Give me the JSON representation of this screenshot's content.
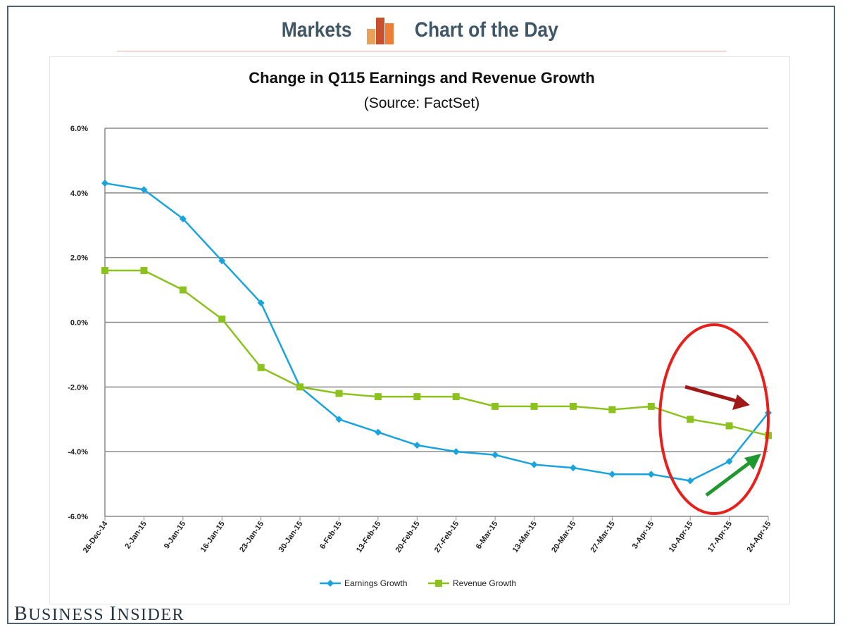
{
  "header": {
    "left_label": "Markets",
    "right_label": "Chart of the Day"
  },
  "colors": {
    "earnings": "#1aa3dc",
    "revenue": "#8cc21e",
    "highlight_circle": "#e8201c",
    "down_arrow": "#a11818",
    "up_arrow": "#20972f",
    "brand": "#3e5666"
  },
  "chart_data": {
    "type": "line",
    "title": "Change in Q115 Earnings and Revenue Growth",
    "subtitle": "(Source: FactSet)",
    "xlabel": "",
    "ylabel": "",
    "ylim": [
      -6.0,
      6.0
    ],
    "yticks": [
      6.0,
      4.0,
      2.0,
      0.0,
      -2.0,
      -4.0,
      -6.0
    ],
    "ytick_labels": [
      "6.0%",
      "4.0%",
      "2.0%",
      "0.0%",
      "-2.0%",
      "-4.0%",
      "-6.0%"
    ],
    "grid": true,
    "legend_position": "bottom-center",
    "categories": [
      "26-Dec-14",
      "2-Jan-15",
      "9-Jan-15",
      "16-Jan-15",
      "23-Jan-15",
      "30-Jan-15",
      "6-Feb-15",
      "13-Feb-15",
      "20-Feb-15",
      "27-Feb-15",
      "6-Mar-15",
      "13-Mar-15",
      "20-Mar-15",
      "27-Mar-15",
      "3-Apr-15",
      "10-Apr-15",
      "17-Apr-15",
      "24-Apr-15"
    ],
    "series": [
      {
        "name": "Earnings Growth",
        "marker": "diamond",
        "values": [
          4.3,
          4.1,
          3.2,
          1.9,
          0.6,
          -2.0,
          -3.0,
          -3.4,
          -3.8,
          -4.0,
          -4.1,
          -4.4,
          -4.5,
          -4.7,
          -4.7,
          -4.9,
          -4.3,
          -2.8
        ]
      },
      {
        "name": "Revenue Growth",
        "marker": "square",
        "values": [
          1.6,
          1.6,
          1.0,
          0.1,
          -1.4,
          -2.0,
          -2.2,
          -2.3,
          -2.3,
          -2.3,
          -2.6,
          -2.6,
          -2.6,
          -2.7,
          -2.6,
          -3.0,
          -3.2,
          -3.5
        ]
      }
    ],
    "annotations": [
      "red circle highlighting final three weeks",
      "dark red arrow pointing down-right",
      "green arrow pointing up-right"
    ]
  },
  "footer": {
    "brand_first_a": "B",
    "brand_rest_a": "USINESS",
    "brand_first_b": "I",
    "brand_rest_b": "NSIDER"
  }
}
